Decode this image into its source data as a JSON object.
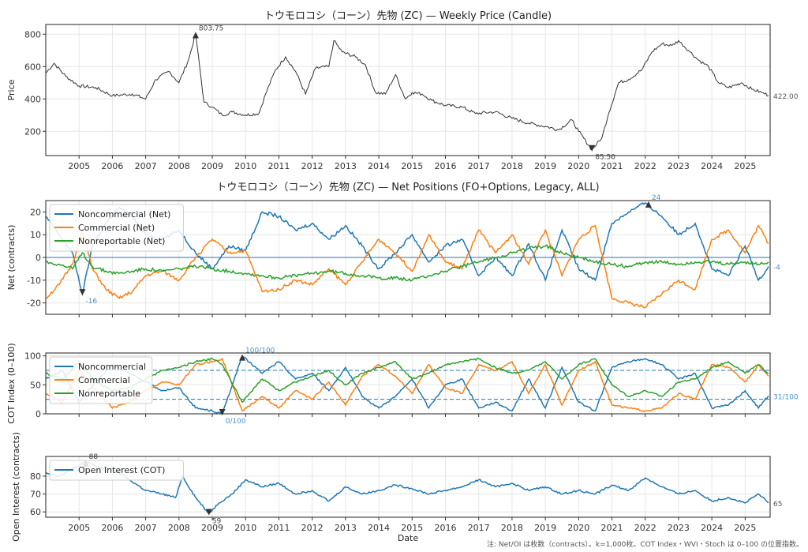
{
  "footnote": "注: Net/OI は枚数（contracts）。k=1,000枚。COT Index・WVI・Stoch は 0–100 の位置指数。",
  "colors": {
    "noncommercial": "#1f77b4",
    "commercial": "#ff7f0e",
    "nonreportable": "#2ca02c",
    "price": "#333333",
    "annot": "#4a90c8",
    "grid": "#e6e6e6"
  },
  "chart_data": [
    {
      "type": "line",
      "title": "トウモロコシ（コーン）先物 (ZC) — Weekly Price (Candle)",
      "xlabel": "",
      "ylabel": "Price",
      "xlim": [
        2004.0,
        2025.75
      ],
      "ylim": [
        50,
        860
      ],
      "yticks": [
        200,
        400,
        600,
        800
      ],
      "xticks": [
        2005,
        2006,
        2007,
        2008,
        2009,
        2010,
        2011,
        2012,
        2013,
        2014,
        2015,
        2016,
        2017,
        2018,
        2019,
        2020,
        2021,
        2022,
        2023,
        2024,
        2025
      ],
      "grid": true,
      "annotations": [
        {
          "text": "803.75",
          "x": 2008.5,
          "y": 803.75,
          "kind": "max"
        },
        {
          "text": "85.50",
          "x": 2020.4,
          "y": 85.5,
          "kind": "min"
        },
        {
          "text": "422.00",
          "x": 2025.7,
          "y": 422.0,
          "kind": "last"
        }
      ],
      "series": [
        {
          "name": "",
          "color": "#333333",
          "x": [
            2004.0,
            2004.25,
            2004.6,
            2005.0,
            2005.5,
            2006.0,
            2006.6,
            2007.0,
            2007.3,
            2007.7,
            2008.0,
            2008.3,
            2008.5,
            2008.75,
            2009.0,
            2009.3,
            2009.6,
            2010.0,
            2010.4,
            2010.6,
            2010.9,
            2011.2,
            2011.5,
            2011.8,
            2012.1,
            2012.5,
            2012.65,
            2012.9,
            2013.3,
            2013.6,
            2013.9,
            2014.2,
            2014.5,
            2014.8,
            2015.0,
            2015.3,
            2015.6,
            2016.0,
            2016.5,
            2016.9,
            2017.5,
            2018.0,
            2018.5,
            2019.0,
            2019.4,
            2019.8,
            2020.0,
            2020.4,
            2020.7,
            2020.9,
            2021.2,
            2021.5,
            2021.9,
            2022.2,
            2022.5,
            2022.8,
            2023.0,
            2023.3,
            2023.6,
            2023.9,
            2024.2,
            2024.5,
            2024.9,
            2025.2,
            2025.5,
            2025.7
          ],
          "y": [
            560,
            620,
            540,
            480,
            470,
            420,
            430,
            400,
            520,
            570,
            500,
            650,
            803.75,
            380,
            350,
            300,
            320,
            300,
            310,
            430,
            580,
            660,
            570,
            430,
            590,
            600,
            760,
            690,
            660,
            610,
            440,
            430,
            550,
            400,
            440,
            430,
            390,
            360,
            350,
            310,
            320,
            280,
            250,
            230,
            210,
            270,
            200,
            85.5,
            160,
            310,
            500,
            520,
            580,
            690,
            740,
            730,
            760,
            700,
            640,
            600,
            500,
            470,
            500,
            460,
            440,
            422
          ]
        }
      ]
    },
    {
      "type": "line",
      "title": "トウモロコシ（コーン）先物 (ZC) — Net Positions (FO+Options, Legacy, ALL)",
      "xlabel": "",
      "ylabel": "Net (contracts)",
      "xlim": [
        2004.0,
        2025.75
      ],
      "ylim": [
        -25,
        25
      ],
      "yticks": [
        -20,
        -10,
        0,
        10,
        20
      ],
      "grid": true,
      "legend": "top-left",
      "annotations": [
        {
          "text": "24",
          "x": 2022.1,
          "y": 24,
          "kind": "max"
        },
        {
          "text": "-16",
          "x": 2005.1,
          "y": -16,
          "kind": "min"
        },
        {
          "text": "-4",
          "x": 2025.7,
          "y": -4,
          "kind": "last"
        }
      ],
      "series": [
        {
          "name": "Noncommercial (Net)",
          "color": "#1f77b4",
          "x": [
            2004.0,
            2004.4,
            2004.8,
            2005.1,
            2005.4,
            2005.8,
            2006.2,
            2006.6,
            2007.0,
            2007.5,
            2008.0,
            2008.5,
            2009.0,
            2009.5,
            2010.0,
            2010.5,
            2011.0,
            2011.5,
            2012.0,
            2012.5,
            2013.0,
            2013.5,
            2014.0,
            2014.5,
            2015.0,
            2015.5,
            2016.0,
            2016.5,
            2017.0,
            2017.5,
            2018.0,
            2018.5,
            2019.0,
            2019.5,
            2020.0,
            2020.5,
            2021.0,
            2021.5,
            2022.0,
            2022.5,
            2023.0,
            2023.5,
            2024.0,
            2024.5,
            2025.0,
            2025.4,
            2025.7
          ],
          "y": [
            18,
            10,
            2,
            -16,
            5,
            15,
            22,
            18,
            10,
            8,
            12,
            2,
            -5,
            5,
            3,
            20,
            18,
            12,
            15,
            8,
            14,
            5,
            -5,
            2,
            10,
            -2,
            5,
            8,
            -8,
            0,
            -8,
            6,
            -10,
            12,
            -5,
            -10,
            15,
            20,
            24,
            18,
            10,
            15,
            -5,
            -8,
            5,
            -10,
            -4
          ]
        },
        {
          "name": "Commercial (Net)",
          "color": "#ff7f0e",
          "x": [
            2004.0,
            2004.4,
            2004.8,
            2005.1,
            2005.4,
            2005.8,
            2006.2,
            2006.6,
            2007.0,
            2007.5,
            2008.0,
            2008.5,
            2009.0,
            2009.5,
            2010.0,
            2010.5,
            2011.0,
            2011.5,
            2012.0,
            2012.5,
            2013.0,
            2013.5,
            2014.0,
            2014.5,
            2015.0,
            2015.5,
            2016.0,
            2016.5,
            2017.0,
            2017.5,
            2018.0,
            2018.5,
            2019.0,
            2019.5,
            2020.0,
            2020.5,
            2021.0,
            2021.5,
            2022.0,
            2022.5,
            2023.0,
            2023.5,
            2024.0,
            2024.5,
            2025.0,
            2025.4,
            2025.7
          ],
          "y": [
            -18,
            -12,
            -3,
            12,
            -5,
            -14,
            -18,
            -15,
            -8,
            -6,
            -10,
            0,
            8,
            2,
            3,
            -15,
            -14,
            -10,
            -12,
            -5,
            -12,
            -2,
            8,
            2,
            -6,
            10,
            -2,
            -5,
            12,
            2,
            10,
            -3,
            12,
            -8,
            8,
            14,
            -18,
            -20,
            -22,
            -16,
            -10,
            -14,
            8,
            12,
            2,
            14,
            6
          ]
        },
        {
          "name": "Nonreportable (Net)",
          "color": "#2ca02c",
          "x": [
            2004.0,
            2004.4,
            2004.8,
            2005.1,
            2005.4,
            2005.8,
            2006.2,
            2006.6,
            2007.0,
            2007.5,
            2008.0,
            2008.5,
            2009.0,
            2009.5,
            2010.0,
            2010.5,
            2011.0,
            2011.5,
            2012.0,
            2012.5,
            2013.0,
            2013.5,
            2014.0,
            2014.5,
            2015.0,
            2015.5,
            2016.0,
            2016.5,
            2017.0,
            2017.5,
            2018.0,
            2018.5,
            2019.0,
            2019.5,
            2020.0,
            2020.5,
            2021.0,
            2021.5,
            2022.0,
            2022.5,
            2023.0,
            2023.5,
            2024.0,
            2024.5,
            2025.0,
            2025.4,
            2025.7
          ],
          "y": [
            -2,
            -3,
            -5,
            2,
            -4,
            -6,
            -7,
            -6,
            -5,
            -6,
            -5,
            -4,
            -5,
            -6,
            -7,
            -8,
            -9,
            -8,
            -7,
            -6,
            -7,
            -8,
            -9,
            -9,
            -10,
            -8,
            -6,
            -4,
            -2,
            0,
            2,
            4,
            5,
            2,
            0,
            -2,
            -3,
            -4,
            -2,
            -2,
            -3,
            -2,
            -2,
            -3,
            -2,
            -3,
            -2
          ]
        }
      ]
    },
    {
      "type": "line",
      "title": "",
      "xlabel": "",
      "ylabel": "COT Index (0–100)",
      "xlim": [
        2004.0,
        2025.75
      ],
      "ylim": [
        0,
        105
      ],
      "yticks": [
        0,
        50,
        100
      ],
      "reference_lines": [
        25,
        75
      ],
      "grid": true,
      "legend": "top-left",
      "annotations": [
        {
          "text": "100/100",
          "x": 2009.9,
          "y": 100,
          "kind": "max"
        },
        {
          "text": "0/100",
          "x": 2009.3,
          "y": 0,
          "kind": "min"
        },
        {
          "text": "31/100",
          "x": 2025.7,
          "y": 31,
          "kind": "last"
        }
      ],
      "series": [
        {
          "name": "Noncommercial",
          "color": "#1f77b4",
          "x": [
            2004.0,
            2004.5,
            2005.0,
            2005.5,
            2006.0,
            2006.5,
            2007.0,
            2007.5,
            2008.0,
            2008.5,
            2009.0,
            2009.3,
            2009.9,
            2010.5,
            2011.0,
            2011.5,
            2012.0,
            2012.5,
            2013.0,
            2013.5,
            2014.0,
            2014.5,
            2015.0,
            2015.5,
            2016.0,
            2016.5,
            2017.0,
            2017.5,
            2018.0,
            2018.5,
            2019.0,
            2019.5,
            2020.0,
            2020.5,
            2021.0,
            2021.5,
            2022.0,
            2022.5,
            2023.0,
            2023.5,
            2024.0,
            2024.5,
            2025.0,
            2025.4,
            2025.7
          ],
          "y": [
            60,
            75,
            20,
            55,
            85,
            70,
            55,
            40,
            45,
            10,
            5,
            0,
            100,
            70,
            90,
            60,
            70,
            40,
            80,
            30,
            10,
            30,
            60,
            10,
            50,
            60,
            10,
            20,
            5,
            60,
            10,
            80,
            20,
            5,
            80,
            90,
            95,
            85,
            60,
            70,
            10,
            15,
            40,
            10,
            31
          ]
        },
        {
          "name": "Commercial",
          "color": "#ff7f0e",
          "x": [
            2004.0,
            2004.5,
            2005.0,
            2005.5,
            2006.0,
            2006.5,
            2007.0,
            2007.5,
            2008.0,
            2008.5,
            2009.0,
            2009.3,
            2009.9,
            2010.5,
            2011.0,
            2011.5,
            2012.0,
            2012.5,
            2013.0,
            2013.5,
            2014.0,
            2014.5,
            2015.0,
            2015.5,
            2016.0,
            2016.5,
            2017.0,
            2017.5,
            2018.0,
            2018.5,
            2019.0,
            2019.5,
            2020.0,
            2020.5,
            2021.0,
            2021.5,
            2022.0,
            2022.5,
            2023.0,
            2023.5,
            2024.0,
            2024.5,
            2025.0,
            2025.4,
            2025.7
          ],
          "y": [
            35,
            20,
            75,
            40,
            10,
            20,
            40,
            55,
            50,
            85,
            90,
            95,
            5,
            30,
            10,
            40,
            25,
            55,
            15,
            65,
            85,
            65,
            35,
            85,
            45,
            35,
            85,
            75,
            90,
            35,
            85,
            15,
            75,
            90,
            15,
            10,
            5,
            10,
            35,
            25,
            85,
            80,
            55,
            85,
            65
          ]
        },
        {
          "name": "Nonreportable",
          "color": "#2ca02c",
          "x": [
            2004.0,
            2004.5,
            2005.0,
            2005.5,
            2006.0,
            2006.5,
            2007.0,
            2007.5,
            2008.0,
            2008.5,
            2009.0,
            2009.3,
            2009.9,
            2010.5,
            2011.0,
            2011.5,
            2012.0,
            2012.5,
            2013.0,
            2013.5,
            2014.0,
            2014.5,
            2015.0,
            2015.5,
            2016.0,
            2016.5,
            2017.0,
            2017.5,
            2018.0,
            2018.5,
            2019.0,
            2019.5,
            2020.0,
            2020.5,
            2021.0,
            2021.5,
            2022.0,
            2022.5,
            2023.0,
            2023.5,
            2024.0,
            2024.5,
            2025.0,
            2025.4,
            2025.7
          ],
          "y": [
            70,
            60,
            90,
            55,
            40,
            45,
            60,
            75,
            80,
            90,
            95,
            85,
            20,
            60,
            40,
            55,
            65,
            75,
            50,
            70,
            80,
            90,
            60,
            70,
            85,
            90,
            95,
            80,
            70,
            75,
            90,
            60,
            85,
            95,
            50,
            30,
            40,
            30,
            55,
            60,
            80,
            90,
            70,
            85,
            70
          ]
        }
      ]
    },
    {
      "type": "line",
      "title": "",
      "xlabel": "Date",
      "ylabel": "Open Interest (contracts)",
      "xlim": [
        2004.0,
        2025.75
      ],
      "ylim": [
        57,
        91
      ],
      "yticks": [
        60,
        70,
        80
      ],
      "xticks": [
        2005,
        2006,
        2007,
        2008,
        2009,
        2010,
        2011,
        2012,
        2013,
        2014,
        2015,
        2016,
        2017,
        2018,
        2019,
        2020,
        2021,
        2022,
        2023,
        2024,
        2025
      ],
      "grid": true,
      "legend": "top-left",
      "annotations": [
        {
          "text": "88",
          "x": 2005.2,
          "y": 88,
          "kind": "max"
        },
        {
          "text": "59",
          "x": 2008.9,
          "y": 59,
          "kind": "min"
        },
        {
          "text": "65",
          "x": 2025.7,
          "y": 65,
          "kind": "last"
        }
      ],
      "series": [
        {
          "name": "Open Interest (COT)",
          "color": "#1f77b4",
          "x": [
            2004.0,
            2004.4,
            2004.8,
            2005.2,
            2005.6,
            2006.0,
            2006.5,
            2007.0,
            2007.5,
            2007.9,
            2008.1,
            2008.5,
            2008.9,
            2009.2,
            2009.6,
            2010.0,
            2010.5,
            2011.0,
            2011.5,
            2012.0,
            2012.5,
            2013.0,
            2013.5,
            2014.0,
            2014.5,
            2015.0,
            2015.5,
            2016.0,
            2016.5,
            2017.0,
            2017.5,
            2018.0,
            2018.5,
            2019.0,
            2019.5,
            2020.0,
            2020.5,
            2021.0,
            2021.5,
            2022.0,
            2022.5,
            2023.0,
            2023.5,
            2024.0,
            2024.5,
            2025.0,
            2025.4,
            2025.7
          ],
          "y": [
            82,
            80,
            84,
            88,
            85,
            84,
            78,
            72,
            70,
            68,
            80,
            68,
            59,
            65,
            70,
            78,
            74,
            76,
            70,
            72,
            66,
            74,
            70,
            72,
            75,
            73,
            70,
            72,
            74,
            78,
            74,
            76,
            72,
            74,
            70,
            72,
            70,
            75,
            72,
            79,
            74,
            70,
            72,
            66,
            68,
            65,
            70,
            65
          ]
        }
      ]
    }
  ]
}
